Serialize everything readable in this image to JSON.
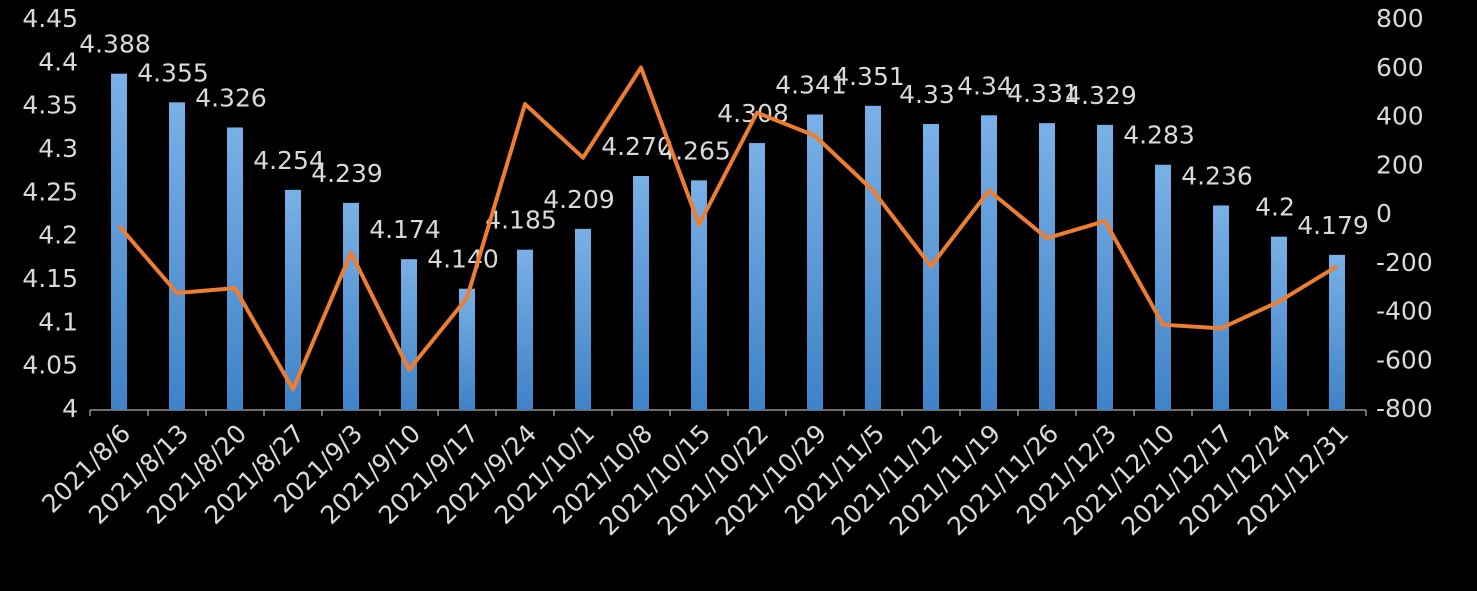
{
  "chart_data": {
    "type": "bar",
    "categories": [
      "2021/8/6",
      "2021/8/13",
      "2021/8/20",
      "2021/8/27",
      "2021/9/3",
      "2021/9/10",
      "2021/9/17",
      "2021/9/24",
      "2021/10/1",
      "2021/10/8",
      "2021/10/15",
      "2021/10/22",
      "2021/10/29",
      "2021/11/5",
      "2021/11/12",
      "2021/11/19",
      "2021/11/26",
      "2021/12/3",
      "2021/12/10",
      "2021/12/17",
      "2021/12/24",
      "2021/12/31"
    ],
    "series": [
      {
        "type": "bar",
        "color": "#5b9bd5",
        "values": [
          4.388,
          4.355,
          4.326,
          4.254,
          4.239,
          4.174,
          4.14,
          4.185,
          4.209,
          4.27,
          4.265,
          4.308,
          4.341,
          4.351,
          4.33,
          4.34,
          4.331,
          4.329,
          4.283,
          4.236,
          4.2,
          4.179
        ],
        "value_labels": [
          "4.388",
          "4.355",
          "4.326",
          "4.254",
          "4.239",
          "4.174",
          "4.140",
          "4.185",
          "4.209",
          "4.270",
          "4.265",
          "4.308",
          "4.341",
          "4.351",
          "4.33",
          "4.34",
          "4.331",
          "4.329",
          "4.283",
          "4.236",
          "4.2",
          "4.179"
        ]
      },
      {
        "type": "line",
        "axis": "y2",
        "color": "#ed7d31",
        "values": [
          -45,
          -320,
          -300,
          -715,
          -155,
          -635,
          -340,
          455,
          235,
          605,
          -40,
          420,
          325,
          100,
          -210,
          100,
          -95,
          -25,
          -450,
          -465,
          -355,
          -210
        ]
      }
    ],
    "ylim": [
      4,
      4.45
    ],
    "yticks": [
      4,
      4.05,
      4.1,
      4.15,
      4.2,
      4.25,
      4.3,
      4.35,
      4.4,
      4.45
    ],
    "y2lim": [
      -800,
      800
    ],
    "y2ticks": [
      -800,
      -600,
      -400,
      -200,
      0,
      200,
      400,
      600,
      800
    ]
  }
}
